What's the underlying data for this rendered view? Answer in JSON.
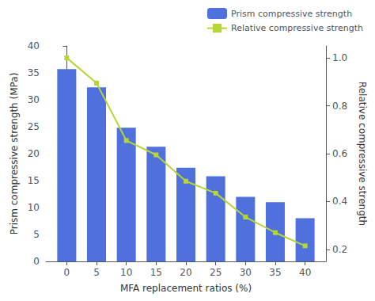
{
  "chart_data": {
    "type": "bar",
    "xlabel": "MFA replacement ratios (%)",
    "ylabel": "Prism compressive strength (MPa)",
    "y2label": "Relative compressive strength",
    "x": [
      0,
      5,
      10,
      15,
      20,
      25,
      30,
      35,
      40
    ],
    "xlim": [
      -3.5,
      43.5
    ],
    "xticks": [
      0,
      5,
      10,
      15,
      20,
      25,
      30,
      35,
      40
    ],
    "ylim": [
      0,
      40
    ],
    "yticks": [
      0,
      5,
      10,
      15,
      20,
      25,
      30,
      35,
      40
    ],
    "y2lim": [
      0.15,
      1.05
    ],
    "y2ticks": [
      0.2,
      0.4,
      0.6,
      0.8,
      {
        "value": 1.0,
        "label": "1.0"
      }
    ],
    "grid": false,
    "legend": "upper right",
    "series": [
      {
        "name": "Prism compressive strength",
        "type": "bar",
        "values": [
          35.7,
          32.3,
          24.8,
          21.3,
          17.4,
          15.8,
          12.0,
          11.0,
          8.0
        ]
      },
      {
        "name": "Relative compressive strength",
        "type": "line",
        "axis": "y2",
        "marker": "square",
        "values": [
          1.0,
          0.895,
          0.655,
          0.595,
          0.485,
          0.435,
          0.335,
          0.27,
          0.215
        ]
      }
    ]
  }
}
